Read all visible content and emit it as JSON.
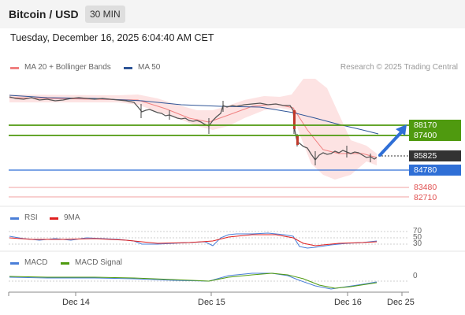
{
  "header": {
    "pair": "Bitcoin / USD",
    "timeframe": "30 MIN"
  },
  "datetime": "Tuesday, December 16, 2025 6:04:40 AM CET",
  "legend": {
    "ma20": "MA 20 + Bollinger Bands",
    "ma50": "MA 50"
  },
  "credit": "Research © 2025 Trading Central",
  "price_levels": {
    "res1": "88170",
    "res2": "87400",
    "current": "85825",
    "sup1": "84780",
    "sup2": "83480",
    "sup3": "82710"
  },
  "rsi": {
    "label": "RSI",
    "ma_label": "9MA",
    "levels": [
      "70",
      "50",
      "30"
    ]
  },
  "macd": {
    "label": "MACD",
    "signal_label": "MACD Signal",
    "zero": "0"
  },
  "x_axis": [
    "Dec 14",
    "Dec 15",
    "Dec 16",
    "Dec 25"
  ],
  "colors": {
    "resistance": "#4f9a0f",
    "current": "#333333",
    "support": "#2f6fd6",
    "support_weak": "#e05050",
    "ma20": "#f08080",
    "ma50": "#2f5597",
    "rsi": "#4a7fd8",
    "rsi_ma": "#e02020",
    "macd": "#4a7fd8",
    "macd_signal": "#4f9a0f"
  }
}
